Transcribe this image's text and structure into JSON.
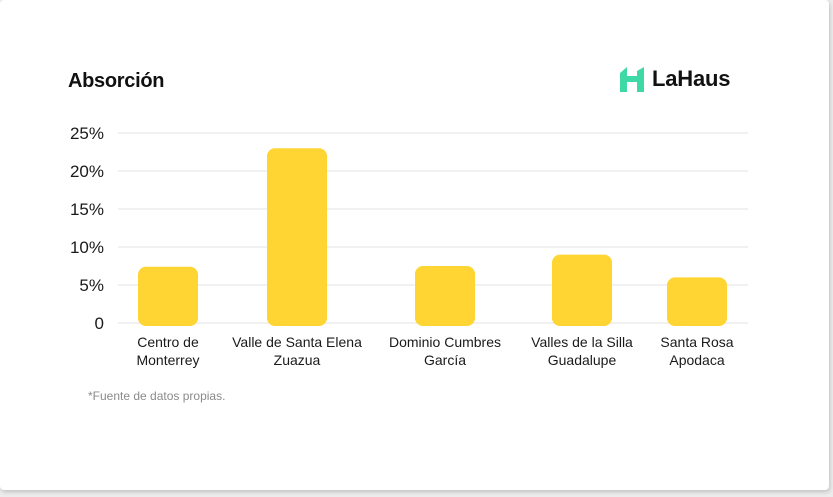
{
  "title": "Absorción",
  "brand": {
    "name": "LaHaus",
    "icon": "house-logo-icon",
    "color": "#3fd9a8"
  },
  "footnote": "*Fuente de datos propias.",
  "chart_data": {
    "type": "bar",
    "title": "Absorción",
    "xlabel": "",
    "ylabel": "",
    "ylim": [
      0,
      25
    ],
    "yticks": [
      {
        "value": 0,
        "label": "0"
      },
      {
        "value": 5,
        "label": "5%"
      },
      {
        "value": 10,
        "label": "10%"
      },
      {
        "value": 15,
        "label": "15%"
      },
      {
        "value": 20,
        "label": "20%"
      },
      {
        "value": 25,
        "label": "25%"
      }
    ],
    "categories": [
      [
        "Centro de",
        "Monterrey"
      ],
      [
        "Valle de Santa Elena",
        "Zuazua"
      ],
      [
        "Dominio Cumbres",
        "García"
      ],
      [
        "Valles de la Silla",
        "Guadalupe"
      ],
      [
        "Santa Rosa",
        "Apodaca"
      ]
    ],
    "values": [
      7.4,
      23.0,
      7.5,
      9.0,
      6.0
    ],
    "bar_color": "#fed533",
    "grid": true
  }
}
